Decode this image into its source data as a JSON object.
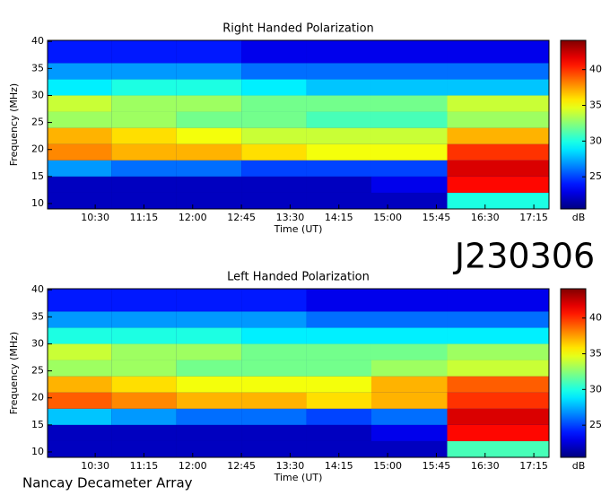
{
  "header": {
    "id": "J230306"
  },
  "footer": "Nancay Decameter Array",
  "chart_data": [
    {
      "type": "heatmap",
      "title": "Right Handed Polarization",
      "x_label": "Time (UT)",
      "y_label": "Frequency (MHz)",
      "colorbar_label": "dB",
      "xlim": [
        586,
        1049
      ],
      "ylim": [
        9,
        40.2
      ],
      "xticks": [
        {
          "value": 630,
          "label": "10:30"
        },
        {
          "value": 675,
          "label": "11:15"
        },
        {
          "value": 720,
          "label": "12:00"
        },
        {
          "value": 765,
          "label": "12:45"
        },
        {
          "value": 810,
          "label": "13:30"
        },
        {
          "value": 855,
          "label": "14:15"
        },
        {
          "value": 900,
          "label": "15:00"
        },
        {
          "value": 945,
          "label": "15:45"
        },
        {
          "value": 990,
          "label": "16:30"
        },
        {
          "value": 1035,
          "label": "17:15"
        }
      ],
      "yticks": [
        10,
        15,
        20,
        25,
        30,
        35,
        40
      ],
      "clim": [
        20.5,
        44.1
      ],
      "cticks": [
        25,
        30,
        35,
        40
      ],
      "x_bins": [
        586,
        645,
        705,
        765,
        825,
        885,
        955,
        1049
      ],
      "y_bins": [
        9,
        12,
        15,
        18,
        21,
        24,
        27,
        30,
        33,
        36,
        40.2
      ],
      "values": [
        [
          22,
          22,
          22,
          22,
          22,
          22,
          30
        ],
        [
          22,
          22,
          22,
          22,
          22,
          23,
          41
        ],
        [
          27,
          26,
          26,
          25,
          25,
          25,
          42
        ],
        [
          38,
          37,
          37,
          36,
          35,
          35,
          40
        ],
        [
          37,
          36,
          35,
          34,
          34,
          34,
          37
        ],
        [
          33,
          33,
          32,
          32,
          31,
          31,
          33
        ],
        [
          34,
          33,
          33,
          32,
          32,
          32,
          34
        ],
        [
          29,
          30,
          30,
          29,
          28,
          28,
          28
        ],
        [
          27,
          27,
          27,
          26,
          26,
          26,
          26
        ],
        [
          24,
          24,
          24,
          23,
          23,
          23,
          23
        ]
      ]
    },
    {
      "type": "heatmap",
      "title": "Left Handed Polarization",
      "x_label": "Time (UT)",
      "y_label": "Frequency (MHz)",
      "colorbar_label": "dB",
      "xlim": [
        586,
        1049
      ],
      "ylim": [
        9,
        40.2
      ],
      "xticks": [
        {
          "value": 630,
          "label": "10:30"
        },
        {
          "value": 675,
          "label": "11:15"
        },
        {
          "value": 720,
          "label": "12:00"
        },
        {
          "value": 765,
          "label": "12:45"
        },
        {
          "value": 810,
          "label": "13:30"
        },
        {
          "value": 855,
          "label": "14:15"
        },
        {
          "value": 900,
          "label": "15:00"
        },
        {
          "value": 945,
          "label": "15:45"
        },
        {
          "value": 990,
          "label": "16:30"
        },
        {
          "value": 1035,
          "label": "17:15"
        }
      ],
      "yticks": [
        10,
        15,
        20,
        25,
        30,
        35,
        40
      ],
      "clim": [
        20.5,
        44.1
      ],
      "cticks": [
        25,
        30,
        35,
        40
      ],
      "x_bins": [
        586,
        645,
        705,
        765,
        825,
        885,
        955,
        1049
      ],
      "y_bins": [
        9,
        12,
        15,
        18,
        21,
        24,
        27,
        30,
        33,
        36,
        40.2
      ],
      "values": [
        [
          22,
          22,
          22,
          22,
          22,
          22,
          31
        ],
        [
          22,
          22,
          22,
          22,
          22,
          23,
          41
        ],
        [
          28,
          27,
          26,
          26,
          25,
          26,
          42
        ],
        [
          39,
          38,
          37,
          37,
          36,
          37,
          40
        ],
        [
          37,
          36,
          35,
          35,
          35,
          37,
          39
        ],
        [
          33,
          33,
          32,
          32,
          32,
          33,
          34
        ],
        [
          34,
          33,
          33,
          32,
          32,
          32,
          33
        ],
        [
          30,
          30,
          30,
          29,
          29,
          29,
          29
        ],
        [
          27,
          27,
          27,
          27,
          26,
          26,
          26
        ],
        [
          24,
          24,
          24,
          24,
          23,
          23,
          23
        ]
      ]
    }
  ]
}
